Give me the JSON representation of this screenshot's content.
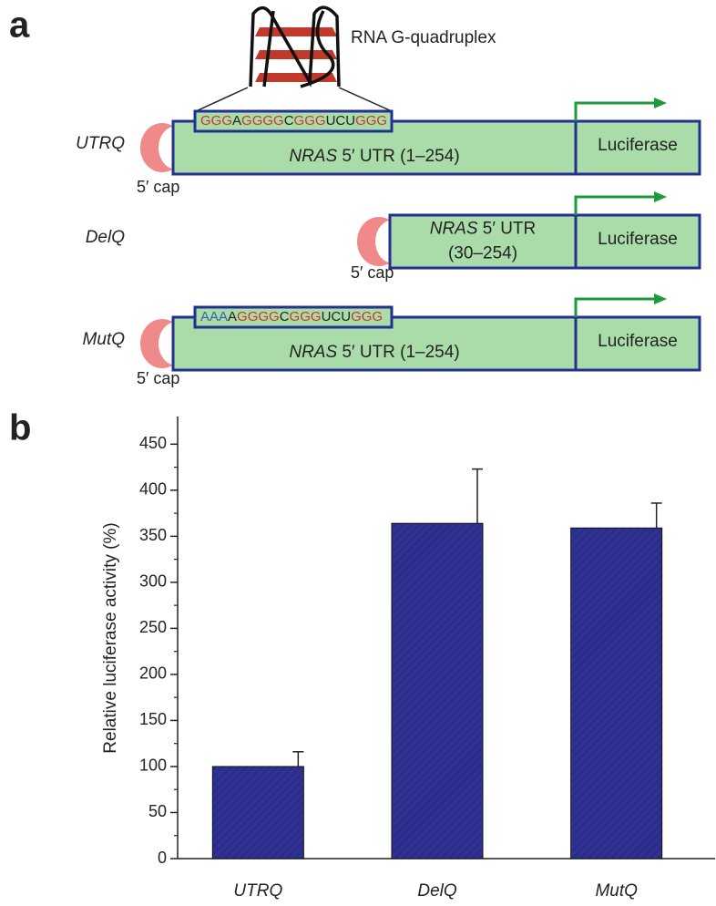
{
  "panel_a": {
    "label": "a",
    "quadruplex_label": "RNA G-quadruplex",
    "constructs": [
      {
        "name": "UTRQ",
        "cap": "5′ cap",
        "sequence": [
          {
            "text": "GGG",
            "color": "#d0342c"
          },
          {
            "text": "A",
            "color": "#222222"
          },
          {
            "text": "GGGG",
            "color": "#d0342c"
          },
          {
            "text": "C",
            "color": "#222222"
          },
          {
            "text": "GGG",
            "color": "#d0342c"
          },
          {
            "text": "UCU",
            "color": "#222222"
          },
          {
            "text": "GGG",
            "color": "#d0342c"
          }
        ],
        "utr_lines": [
          {
            "italic": "NRAS",
            "text": " 5′ UTR (1–254)"
          }
        ],
        "reporter": "Luciferase"
      },
      {
        "name": "DelQ",
        "cap": "5′ cap",
        "utr_lines": [
          {
            "italic": "NRAS",
            "text": " 5′ UTR"
          },
          {
            "text": "(30–254)"
          }
        ],
        "reporter": "Luciferase"
      },
      {
        "name": "MutQ",
        "cap": "5′ cap",
        "sequence": [
          {
            "text": "AAA",
            "color": "#3a5fb0"
          },
          {
            "text": "A",
            "color": "#222222"
          },
          {
            "text": "GGGG",
            "color": "#d0342c"
          },
          {
            "text": "C",
            "color": "#222222"
          },
          {
            "text": "GGG",
            "color": "#d0342c"
          },
          {
            "text": "UCU",
            "color": "#222222"
          },
          {
            "text": "GGG",
            "color": "#d0342c"
          }
        ],
        "utr_lines": [
          {
            "italic": "NRAS",
            "text": " 5′ UTR (1–254)"
          }
        ],
        "reporter": "Luciferase"
      }
    ]
  },
  "chart_data": {
    "type": "bar",
    "panel_label": "b",
    "y_label": "Relative luciferase activity (%)",
    "categories": [
      "UTRQ",
      "DelQ",
      "MutQ"
    ],
    "values": [
      100,
      364,
      359
    ],
    "errors": [
      16,
      59,
      27
    ],
    "color": "#2e3192",
    "ylim": [
      0,
      480
    ],
    "yticks": [
      0,
      50,
      100,
      150,
      200,
      250,
      300,
      350,
      400,
      450
    ]
  }
}
